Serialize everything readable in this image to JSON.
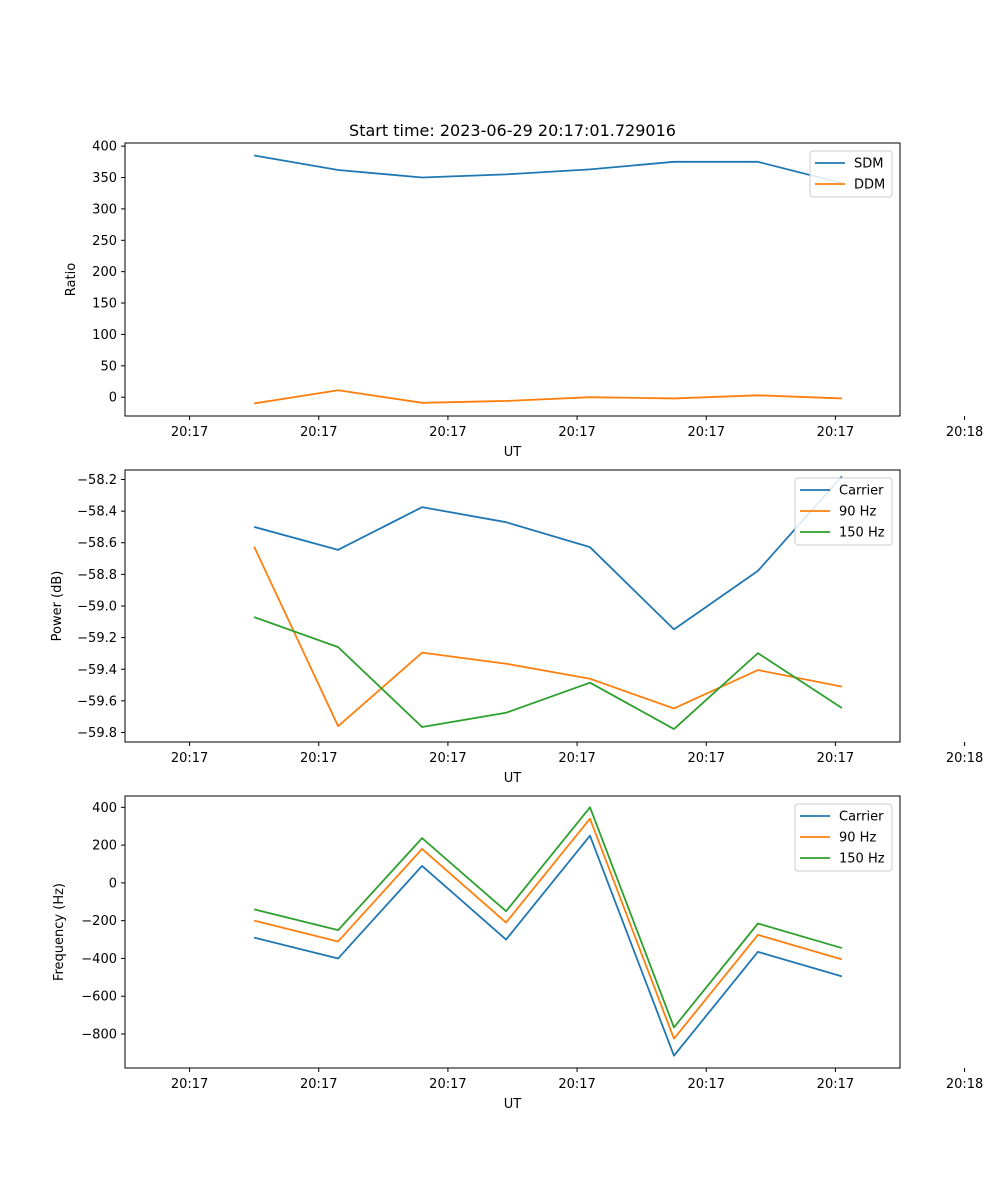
{
  "chart_data": [
    {
      "type": "line",
      "title": "Start time: 2023-06-29 20:17:01.729016",
      "xlabel": "UT",
      "ylabel": "Ratio",
      "x": [
        0.5,
        1.15,
        1.8,
        2.45,
        3.1,
        3.75,
        4.4,
        5.05
      ],
      "xlim": [
        -0.5,
        5.5
      ],
      "xticks": [
        0,
        1,
        2,
        3,
        4,
        5,
        6
      ],
      "xticklabels": [
        "20:17",
        "20:17",
        "20:17",
        "20:17",
        "20:17",
        "20:17",
        "20:18"
      ],
      "ylim": [
        -30,
        405
      ],
      "yticks": [
        0,
        50,
        100,
        150,
        200,
        250,
        300,
        350,
        400
      ],
      "yticklabels": [
        "0",
        "50",
        "100",
        "150",
        "200",
        "250",
        "300",
        "350",
        "400"
      ],
      "legend": "top-right",
      "series": [
        {
          "name": "SDM",
          "color": "#1f77b4",
          "values": [
            385,
            362,
            350,
            355,
            363,
            375,
            375,
            341
          ]
        },
        {
          "name": "DDM",
          "color": "#ff7f0e",
          "values": [
            -10,
            11,
            -9,
            -6,
            0,
            -2,
            3,
            -2
          ]
        }
      ]
    },
    {
      "type": "line",
      "title": "",
      "xlabel": "UT",
      "ylabel": "Power (dB)",
      "x": [
        0.5,
        1.15,
        1.8,
        2.45,
        3.1,
        3.75,
        4.4,
        5.05
      ],
      "xlim": [
        -0.5,
        5.5
      ],
      "xticks": [
        0,
        1,
        2,
        3,
        4,
        5,
        6
      ],
      "xticklabels": [
        "20:17",
        "20:17",
        "20:17",
        "20:17",
        "20:17",
        "20:17",
        "20:18"
      ],
      "ylim": [
        -59.86,
        -58.14
      ],
      "yticks": [
        -59.8,
        -59.6,
        -59.4,
        -59.2,
        -59.0,
        -58.8,
        -58.6,
        -58.4,
        -58.2
      ],
      "yticklabels": [
        "−59.8",
        "−59.6",
        "−59.4",
        "−59.2",
        "−59.0",
        "−58.8",
        "−58.6",
        "−58.4",
        "−58.2"
      ],
      "legend": "top-right",
      "series": [
        {
          "name": "Carrier",
          "color": "#1f77b4",
          "values": [
            -58.5,
            -58.645,
            -58.375,
            -58.47,
            -58.628,
            -59.148,
            -58.778,
            -58.18
          ]
        },
        {
          "name": "90 Hz",
          "color": "#ff7f0e",
          "values": [
            -58.625,
            -59.76,
            -59.295,
            -59.365,
            -59.46,
            -59.648,
            -59.405,
            -59.51
          ]
        },
        {
          "name": "150 Hz",
          "color": "#2ca02c",
          "values": [
            -59.07,
            -59.26,
            -59.765,
            -59.675,
            -59.485,
            -59.778,
            -59.298,
            -59.645
          ]
        }
      ]
    },
    {
      "type": "line",
      "title": "",
      "xlabel": "UT",
      "ylabel": "Frequency (Hz)",
      "x": [
        0.5,
        1.15,
        1.8,
        2.45,
        3.1,
        3.75,
        4.4,
        5.05
      ],
      "xlim": [
        -0.5,
        5.5
      ],
      "xticks": [
        0,
        1,
        2,
        3,
        4,
        5,
        6
      ],
      "xticklabels": [
        "20:17",
        "20:17",
        "20:17",
        "20:17",
        "20:17",
        "20:17",
        "20:18"
      ],
      "ylim": [
        -980,
        460
      ],
      "yticks": [
        -800,
        -600,
        -400,
        -200,
        0,
        200,
        400
      ],
      "yticklabels": [
        "−800",
        "−600",
        "−400",
        "−200",
        "0",
        "200",
        "400"
      ],
      "legend": "top-right",
      "series": [
        {
          "name": "Carrier",
          "color": "#1f77b4",
          "values": [
            -290,
            -400,
            90,
            -300,
            250,
            -915,
            -365,
            -495
          ]
        },
        {
          "name": "90 Hz",
          "color": "#ff7f0e",
          "values": [
            -200,
            -310,
            180,
            -210,
            340,
            -825,
            -275,
            -405
          ]
        },
        {
          "name": "150 Hz",
          "color": "#2ca02c",
          "values": [
            -140,
            -250,
            237,
            -150,
            400,
            -765,
            -215,
            -345
          ]
        }
      ]
    }
  ]
}
